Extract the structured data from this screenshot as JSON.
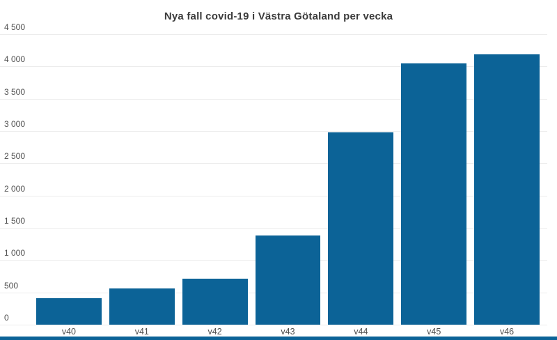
{
  "title": "Nya fall covid-19 i Västra Götaland per vecka",
  "colors": {
    "background": "#ffffff",
    "bar": "#0c6397",
    "gridline": "#ececec",
    "axis_text": "#4f4f4f",
    "title_text": "#3b3b3b",
    "accent_strip": "#0c6397"
  },
  "chart_data": {
    "type": "bar",
    "title": "Nya fall covid-19 i Västra Götaland per vecka",
    "categories": [
      "v40",
      "v41",
      "v42",
      "v43",
      "v44",
      "v45",
      "v46"
    ],
    "values": [
      410,
      560,
      710,
      1380,
      2980,
      4050,
      4190
    ],
    "xlabel": "",
    "ylabel": "",
    "ylim": [
      0,
      4500
    ],
    "ytick_step": 500,
    "ytick_labels": [
      "0",
      "500",
      "1 000",
      "1 500",
      "2 000",
      "2 500",
      "3 000",
      "3 500",
      "4 000",
      "4 500"
    ],
    "grid": true,
    "legend": false,
    "bar_color": "#0c6397"
  }
}
